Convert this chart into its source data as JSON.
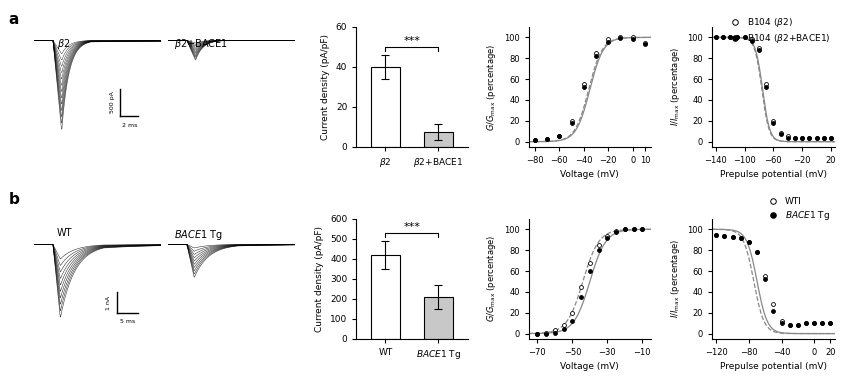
{
  "bar_a_values": [
    40,
    7.5
  ],
  "bar_a_errors": [
    6,
    4
  ],
  "bar_a_ylim": [
    0,
    60
  ],
  "bar_a_yticks": [
    0,
    20,
    40,
    60
  ],
  "bar_a_colors": [
    "white",
    "#c8c8c8"
  ],
  "bar_b_values": [
    420,
    210
  ],
  "bar_b_errors": [
    70,
    60
  ],
  "bar_b_ylim": [
    0,
    600
  ],
  "bar_b_yticks": [
    0,
    100,
    200,
    300,
    400,
    500,
    600
  ],
  "bar_b_colors": [
    "white",
    "#c8c8c8"
  ],
  "act_a_xlim": [
    -85,
    15
  ],
  "act_a_ylim": [
    -5,
    110
  ],
  "act_a_xticks": [
    -80,
    -60,
    -40,
    -20,
    0,
    10
  ],
  "act_a_yticks": [
    0,
    20,
    40,
    60,
    80,
    100
  ],
  "act_a_open_x": [
    -80,
    -70,
    -60,
    -50,
    -40,
    -30,
    -20,
    -10,
    0,
    10
  ],
  "act_a_open_y": [
    2,
    3,
    5,
    20,
    55,
    85,
    98,
    100,
    100,
    95
  ],
  "act_a_filled_x": [
    -80,
    -70,
    -60,
    -50,
    -40,
    -30,
    -20,
    -10,
    0,
    10
  ],
  "act_a_filled_y": [
    2,
    3,
    5,
    18,
    52,
    82,
    96,
    99,
    98,
    94
  ],
  "inact_a_xlim": [
    -145,
    25
  ],
  "inact_a_ylim": [
    -5,
    110
  ],
  "inact_a_xticks": [
    -140,
    -100,
    -60,
    -20,
    20
  ],
  "inact_a_yticks": [
    0,
    20,
    40,
    60,
    80,
    100
  ],
  "inact_a_open_x": [
    -140,
    -130,
    -120,
    -110,
    -100,
    -90,
    -80,
    -70,
    -60,
    -50,
    -40,
    -30,
    -20,
    -10,
    0,
    10,
    20
  ],
  "inact_a_open_y": [
    100,
    100,
    100,
    100,
    100,
    98,
    90,
    55,
    20,
    8,
    5,
    4,
    4,
    4,
    4,
    4,
    4
  ],
  "inact_a_filled_x": [
    -140,
    -130,
    -120,
    -110,
    -100,
    -90,
    -80,
    -70,
    -60,
    -50,
    -40,
    -30,
    -20,
    -10,
    0,
    10,
    20
  ],
  "inact_a_filled_y": [
    100,
    100,
    100,
    100,
    100,
    97,
    88,
    52,
    18,
    7,
    4,
    4,
    4,
    4,
    4,
    4,
    4
  ],
  "act_b_xlim": [
    -75,
    -5
  ],
  "act_b_ylim": [
    -5,
    110
  ],
  "act_b_xticks": [
    -70,
    -50,
    -30,
    -10
  ],
  "act_b_yticks": [
    0,
    20,
    40,
    60,
    80,
    100
  ],
  "act_b_open_x": [
    -70,
    -65,
    -60,
    -55,
    -50,
    -45,
    -40,
    -35,
    -30,
    -25,
    -20,
    -15,
    -10
  ],
  "act_b_open_y": [
    0,
    1,
    3,
    8,
    20,
    45,
    68,
    85,
    94,
    98,
    100,
    100,
    100
  ],
  "act_b_filled_x": [
    -70,
    -65,
    -60,
    -55,
    -50,
    -45,
    -40,
    -35,
    -30,
    -25,
    -20,
    -15,
    -10
  ],
  "act_b_filled_y": [
    0,
    0,
    1,
    4,
    12,
    35,
    60,
    80,
    92,
    97,
    100,
    100,
    100
  ],
  "inact_b_xlim": [
    -125,
    25
  ],
  "inact_b_ylim": [
    -5,
    110
  ],
  "inact_b_xticks": [
    -120,
    -80,
    -40,
    0,
    20
  ],
  "inact_b_yticks": [
    0,
    20,
    40,
    60,
    80,
    100
  ],
  "inact_b_open_x": [
    -120,
    -110,
    -100,
    -90,
    -80,
    -70,
    -60,
    -50,
    -40,
    -30,
    -20,
    -10,
    0,
    10,
    20
  ],
  "inact_b_open_y": [
    95,
    94,
    93,
    92,
    88,
    78,
    55,
    28,
    12,
    8,
    8,
    10,
    10,
    10,
    10
  ],
  "inact_b_filled_x": [
    -120,
    -110,
    -100,
    -90,
    -80,
    -70,
    -60,
    -50,
    -40,
    -30,
    -20,
    -10,
    0,
    10,
    20
  ],
  "inact_b_filled_y": [
    95,
    94,
    93,
    92,
    88,
    78,
    52,
    22,
    10,
    8,
    8,
    10,
    10,
    10,
    10
  ],
  "significance_stars": "***"
}
